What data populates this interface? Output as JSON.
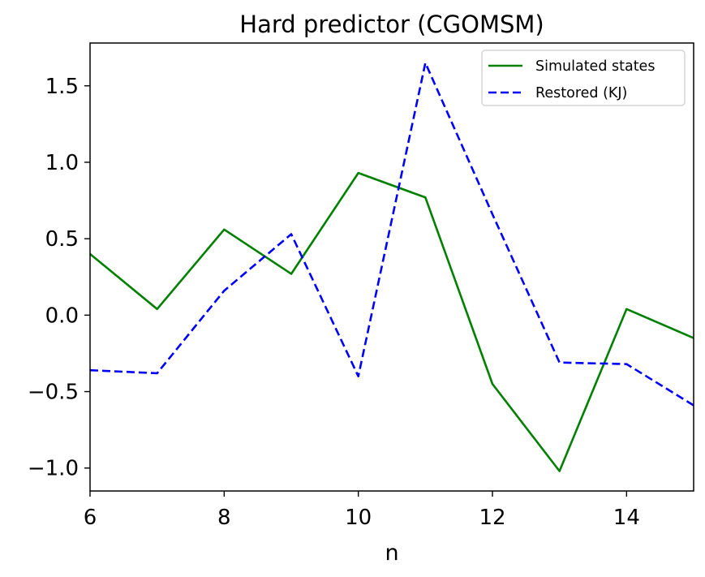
{
  "chart_data": {
    "type": "line",
    "title": "Hard predictor (CGOMSM)",
    "xlabel": "n",
    "ylabel": "",
    "xlim": [
      6,
      15
    ],
    "ylim": [
      -1.15,
      1.78
    ],
    "xticks": [
      6,
      8,
      10,
      12,
      14
    ],
    "xtick_labels": [
      "6",
      "8",
      "10",
      "12",
      "14"
    ],
    "yticks": [
      -1.0,
      -0.5,
      0.0,
      0.5,
      1.0,
      1.5
    ],
    "ytick_labels": [
      "−1.0",
      "−0.5",
      "0.0",
      "0.5",
      "1.0",
      "1.5"
    ],
    "grid": false,
    "legend_position": "upper-right",
    "x": [
      6,
      7,
      8,
      9,
      10,
      11,
      12,
      13,
      14,
      15
    ],
    "series": [
      {
        "name": "Simulated states",
        "color": "#008000",
        "style": "solid",
        "values": [
          0.4,
          0.04,
          0.56,
          0.27,
          0.93,
          0.77,
          -0.45,
          -1.02,
          0.04,
          -0.15
        ]
      },
      {
        "name": "Restored (KJ)",
        "color": "#0000ff",
        "style": "dashed",
        "values": [
          -0.36,
          -0.38,
          0.16,
          0.53,
          -0.4,
          1.65,
          0.66,
          -0.31,
          -0.32,
          -0.59
        ]
      }
    ]
  }
}
